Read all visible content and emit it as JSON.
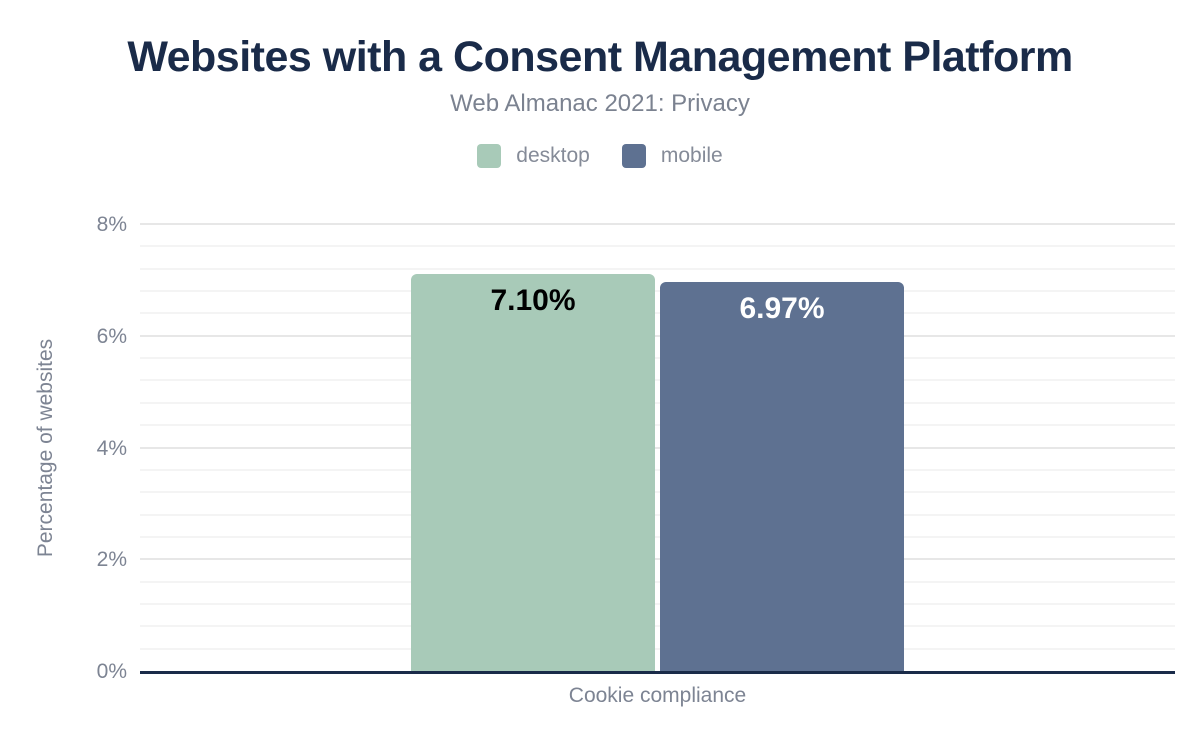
{
  "chart_data": {
    "type": "bar",
    "title": "Websites with a Consent Management Platform",
    "subtitle": "Web Almanac 2021: Privacy",
    "categories": [
      "Cookie compliance"
    ],
    "series": [
      {
        "name": "desktop",
        "values": [
          7.1
        ],
        "value_labels": [
          "7.10%"
        ],
        "color": "#a8cab8",
        "value_label_color": "#000000"
      },
      {
        "name": "mobile",
        "values": [
          6.97
        ],
        "value_labels": [
          "6.97%"
        ],
        "color": "#5e7191",
        "value_label_color": "#ffffff"
      }
    ],
    "xlabel": "Cookie compliance",
    "ylabel": "Percentage of websites",
    "ylim": [
      0,
      8
    ],
    "yticks": [
      0,
      2,
      4,
      6,
      8
    ],
    "ytick_labels": [
      "0%",
      "2%",
      "4%",
      "6%",
      "8%"
    ],
    "minor_grid_step": 0.4,
    "grid": true,
    "legend_position": "top"
  },
  "colors": {
    "title_text": "#1a2b49",
    "subtitle_text": "#7b8290",
    "axis_text": "#7d8493",
    "legend_text": "#858b98",
    "axis_line": "#1a2b49",
    "gridline_major": "#e7e7e7",
    "gridline_minor": "#f4f4f4",
    "background": "#ffffff"
  }
}
